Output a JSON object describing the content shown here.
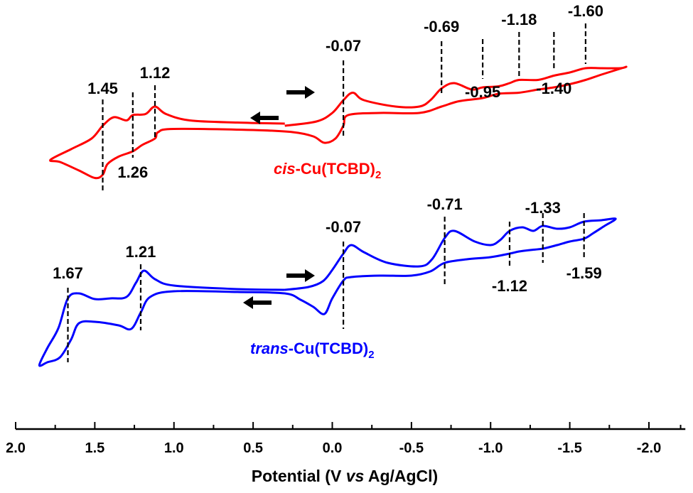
{
  "chart_data": {
    "type": "line",
    "title": "",
    "xlabel": "Potential (V vs Ag/AgCl)",
    "xlabel_parts": [
      "Potential (V ",
      "vs",
      " Ag/AgCl)"
    ],
    "ylabel": "",
    "xlim": [
      2.0,
      -2.23
    ],
    "x_ticks": [
      2.0,
      1.5,
      1.0,
      0.5,
      0.0,
      -0.5,
      -1.0,
      -1.5,
      -2.0
    ],
    "x_tick_labels": [
      "2.0",
      "1.5",
      "1.0",
      "0.5",
      "0.0",
      "-0.5",
      "-1.0",
      "-1.5",
      "-2.0"
    ],
    "x_minor_ticks": [
      1.75,
      1.25,
      0.75,
      0.25,
      -0.25,
      -0.75,
      -1.25,
      -1.75,
      -2.2
    ],
    "y_axis_shown": false,
    "grid": false,
    "series": [
      {
        "name": "cis-Cu(TCBD)2",
        "label_italic": "cis",
        "label_rest": "-Cu(TCBD)",
        "label_sub": "2",
        "color": "#ff0000",
        "start_potential": 0.3,
        "scan_direction_first": "cathodic",
        "upper_branch": [
          [
            0.3,
            0.62
          ],
          [
            0.1,
            0.66
          ],
          [
            0.0,
            0.74
          ],
          [
            -0.07,
            0.86
          ],
          [
            -0.13,
            0.93
          ],
          [
            -0.2,
            0.86
          ],
          [
            -0.4,
            0.8
          ],
          [
            -0.55,
            0.8
          ],
          [
            -0.62,
            0.86
          ],
          [
            -0.69,
            0.97
          ],
          [
            -0.77,
            1.02
          ],
          [
            -0.88,
            0.96
          ],
          [
            -0.95,
            0.98
          ],
          [
            -1.05,
            0.99
          ],
          [
            -1.12,
            1.02
          ],
          [
            -1.18,
            1.05
          ],
          [
            -1.3,
            1.05
          ],
          [
            -1.4,
            1.09
          ],
          [
            -1.5,
            1.12
          ],
          [
            -1.6,
            1.16
          ],
          [
            -1.7,
            1.16
          ],
          [
            -1.82,
            1.16
          ],
          [
            -1.85,
            1.17
          ]
        ],
        "lower_branch": [
          [
            -1.85,
            1.17
          ],
          [
            -1.7,
            1.1
          ],
          [
            -1.6,
            1.05
          ],
          [
            -1.5,
            1.01
          ],
          [
            -1.4,
            0.98
          ],
          [
            -1.3,
            0.96
          ],
          [
            -1.18,
            0.93
          ],
          [
            -1.05,
            0.92
          ],
          [
            -0.95,
            0.88
          ],
          [
            -0.8,
            0.85
          ],
          [
            -0.69,
            0.8
          ],
          [
            -0.55,
            0.74
          ],
          [
            -0.3,
            0.74
          ],
          [
            -0.1,
            0.72
          ],
          [
            -0.07,
            0.62
          ],
          [
            -0.02,
            0.5
          ],
          [
            0.05,
            0.46
          ],
          [
            0.12,
            0.52
          ],
          [
            0.25,
            0.56
          ],
          [
            0.5,
            0.58
          ],
          [
            1.0,
            0.59
          ],
          [
            1.1,
            0.56
          ],
          [
            1.12,
            0.5
          ],
          [
            1.2,
            0.44
          ],
          [
            1.26,
            0.38
          ],
          [
            1.35,
            0.33
          ],
          [
            1.42,
            0.26
          ],
          [
            1.45,
            0.16
          ],
          [
            1.5,
            0.13
          ],
          [
            1.6,
            0.2
          ],
          [
            1.72,
            0.28
          ],
          [
            1.78,
            0.3
          ]
        ],
        "return_branch": [
          [
            1.78,
            0.3
          ],
          [
            1.65,
            0.4
          ],
          [
            1.52,
            0.5
          ],
          [
            1.45,
            0.62
          ],
          [
            1.38,
            0.7
          ],
          [
            1.3,
            0.67
          ],
          [
            1.26,
            0.72
          ],
          [
            1.18,
            0.73
          ],
          [
            1.12,
            0.8
          ],
          [
            1.05,
            0.73
          ],
          [
            0.9,
            0.67
          ],
          [
            0.6,
            0.65
          ],
          [
            0.3,
            0.64
          ]
        ],
        "peaks": [
          {
            "potential": 1.45,
            "label": "1.45",
            "label_pos": "above"
          },
          {
            "potential": 1.26,
            "label": "1.26",
            "label_pos": "below"
          },
          {
            "potential": 1.12,
            "label": "1.12",
            "label_pos": "above"
          },
          {
            "potential": -0.07,
            "label": "-0.07",
            "label_pos": "above"
          },
          {
            "potential": -0.69,
            "label": "-0.69",
            "label_pos": "above"
          },
          {
            "potential": -0.95,
            "label": "-0.95",
            "label_pos": "below"
          },
          {
            "potential": -1.18,
            "label": "-1.18",
            "label_pos": "above"
          },
          {
            "potential": -1.4,
            "label": "-1.40",
            "label_pos": "below"
          },
          {
            "potential": -1.6,
            "label": "-1.60",
            "label_pos": "above"
          }
        ]
      },
      {
        "name": "trans-Cu(TCBD)2",
        "label_italic": "trans",
        "label_rest": "-Cu(TCBD)",
        "label_sub": "2",
        "color": "#0000ff",
        "start_potential": 0.3,
        "scan_direction_first": "cathodic",
        "peaks": [
          {
            "potential": 1.67,
            "label": "1.67",
            "label_pos": "above"
          },
          {
            "potential": 1.21,
            "label": "1.21",
            "label_pos": "above"
          },
          {
            "potential": -0.07,
            "label": "-0.07",
            "label_pos": "above"
          },
          {
            "potential": -0.71,
            "label": "-0.71",
            "label_pos": "above"
          },
          {
            "potential": -1.12,
            "label": "-1.12",
            "label_pos": "below"
          },
          {
            "potential": -1.33,
            "label": "-1.33",
            "label_pos": "above"
          },
          {
            "potential": -1.59,
            "label": "-1.59",
            "label_pos": "below"
          }
        ]
      }
    ],
    "annotations": [
      {
        "type": "arrow",
        "direction": "right",
        "meaning": "forward cathodic scan"
      },
      {
        "type": "arrow",
        "direction": "left",
        "meaning": "reverse anodic scan"
      }
    ]
  }
}
